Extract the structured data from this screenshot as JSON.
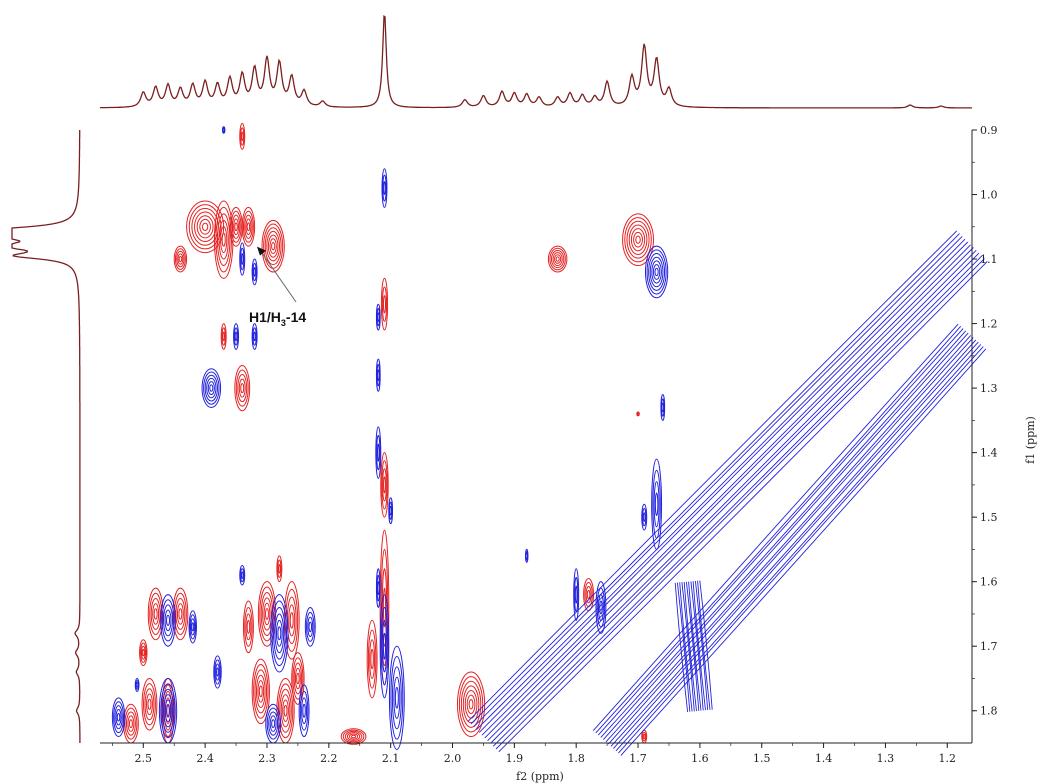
{
  "chart_data": {
    "type": "contour",
    "xlabel": "f2 (ppm)",
    "ylabel": "f1 (ppm)",
    "xlim": [
      2.57,
      1.16
    ],
    "ylim": [
      0.9,
      1.85
    ],
    "x_ticks": [
      "2.5",
      "2.4",
      "2.3",
      "2.2",
      "2.1",
      "2.0",
      "1.9",
      "1.8",
      "1.7",
      "1.6",
      "1.5",
      "1.4",
      "1.3",
      "1.2"
    ],
    "y_ticks": [
      "0.9",
      "1.0",
      "1.1",
      "1.2",
      "1.3",
      "1.4",
      "1.5",
      "1.6",
      "1.7",
      "1.8"
    ],
    "annotation": {
      "text_main": "H1/H",
      "text_sub": "3",
      "text_tail": "-14",
      "x": 2.3,
      "y": 1.09
    },
    "colors": {
      "positive": "#e52222",
      "negative": "#2222dd",
      "projection": "#7a1f1f"
    },
    "projection_peaks_f2": [
      {
        "x": 2.5,
        "h": 0.15
      },
      {
        "x": 2.48,
        "h": 0.2
      },
      {
        "x": 2.46,
        "h": 0.22
      },
      {
        "x": 2.44,
        "h": 0.18
      },
      {
        "x": 2.42,
        "h": 0.22
      },
      {
        "x": 2.4,
        "h": 0.25
      },
      {
        "x": 2.38,
        "h": 0.22
      },
      {
        "x": 2.36,
        "h": 0.28
      },
      {
        "x": 2.34,
        "h": 0.32
      },
      {
        "x": 2.32,
        "h": 0.38
      },
      {
        "x": 2.3,
        "h": 0.48
      },
      {
        "x": 2.28,
        "h": 0.44
      },
      {
        "x": 2.26,
        "h": 0.3
      },
      {
        "x": 2.24,
        "h": 0.16
      },
      {
        "x": 2.21,
        "h": 0.06
      },
      {
        "x": 2.11,
        "h": 1.0
      },
      {
        "x": 1.98,
        "h": 0.08
      },
      {
        "x": 1.95,
        "h": 0.12
      },
      {
        "x": 1.92,
        "h": 0.16
      },
      {
        "x": 1.9,
        "h": 0.14
      },
      {
        "x": 1.88,
        "h": 0.13
      },
      {
        "x": 1.86,
        "h": 0.1
      },
      {
        "x": 1.83,
        "h": 0.1
      },
      {
        "x": 1.81,
        "h": 0.14
      },
      {
        "x": 1.79,
        "h": 0.12
      },
      {
        "x": 1.77,
        "h": 0.1
      },
      {
        "x": 1.75,
        "h": 0.26
      },
      {
        "x": 1.71,
        "h": 0.3
      },
      {
        "x": 1.69,
        "h": 0.62
      },
      {
        "x": 1.67,
        "h": 0.48
      },
      {
        "x": 1.65,
        "h": 0.18
      },
      {
        "x": 1.26,
        "h": 0.03
      },
      {
        "x": 1.21,
        "h": 0.02
      }
    ],
    "projection_peaks_f1": [
      {
        "y": 1.055,
        "h": 1.0
      },
      {
        "y": 1.065,
        "h": 0.9
      },
      {
        "y": 1.08,
        "h": 0.95
      },
      {
        "y": 1.095,
        "h": 0.8
      },
      {
        "y": 1.68,
        "h": 0.07
      },
      {
        "y": 1.71,
        "h": 0.06
      },
      {
        "y": 1.74,
        "h": 0.05
      },
      {
        "y": 1.8,
        "h": 0.05
      }
    ],
    "positive_peaks": [
      {
        "x": 2.4,
        "y": 1.05,
        "rx": 0.03,
        "ry": 0.04
      },
      {
        "x": 2.37,
        "y": 1.07,
        "rx": 0.015,
        "ry": 0.06
      },
      {
        "x": 2.35,
        "y": 1.05,
        "rx": 0.01,
        "ry": 0.03
      },
      {
        "x": 2.33,
        "y": 1.05,
        "rx": 0.01,
        "ry": 0.03
      },
      {
        "x": 2.29,
        "y": 1.08,
        "rx": 0.018,
        "ry": 0.04
      },
      {
        "x": 2.44,
        "y": 1.1,
        "rx": 0.01,
        "ry": 0.02
      },
      {
        "x": 2.34,
        "y": 1.3,
        "rx": 0.012,
        "ry": 0.035
      },
      {
        "x": 2.34,
        "y": 0.91,
        "rx": 0.004,
        "ry": 0.02
      },
      {
        "x": 2.37,
        "y": 1.22,
        "rx": 0.004,
        "ry": 0.02
      },
      {
        "x": 2.11,
        "y": 1.17,
        "rx": 0.005,
        "ry": 0.04
      },
      {
        "x": 2.11,
        "y": 1.45,
        "rx": 0.006,
        "ry": 0.05
      },
      {
        "x": 2.11,
        "y": 1.64,
        "rx": 0.007,
        "ry": 0.12
      },
      {
        "x": 2.13,
        "y": 1.72,
        "rx": 0.008,
        "ry": 0.06
      },
      {
        "x": 1.83,
        "y": 1.1,
        "rx": 0.015,
        "ry": 0.02
      },
      {
        "x": 1.7,
        "y": 1.07,
        "rx": 0.025,
        "ry": 0.04
      },
      {
        "x": 1.7,
        "y": 1.34,
        "rx": 0.002,
        "ry": 0.003
      },
      {
        "x": 1.97,
        "y": 1.79,
        "rx": 0.022,
        "ry": 0.05
      },
      {
        "x": 1.78,
        "y": 1.62,
        "rx": 0.008,
        "ry": 0.025
      },
      {
        "x": 2.48,
        "y": 1.65,
        "rx": 0.012,
        "ry": 0.04
      },
      {
        "x": 2.44,
        "y": 1.65,
        "rx": 0.012,
        "ry": 0.04
      },
      {
        "x": 2.5,
        "y": 1.71,
        "rx": 0.006,
        "ry": 0.02
      },
      {
        "x": 2.49,
        "y": 1.79,
        "rx": 0.012,
        "ry": 0.04
      },
      {
        "x": 2.52,
        "y": 1.82,
        "rx": 0.012,
        "ry": 0.03
      },
      {
        "x": 2.46,
        "y": 1.8,
        "rx": 0.01,
        "ry": 0.05
      },
      {
        "x": 2.33,
        "y": 1.67,
        "rx": 0.008,
        "ry": 0.04
      },
      {
        "x": 2.3,
        "y": 1.65,
        "rx": 0.014,
        "ry": 0.05
      },
      {
        "x": 2.26,
        "y": 1.66,
        "rx": 0.012,
        "ry": 0.06
      },
      {
        "x": 2.28,
        "y": 1.58,
        "rx": 0.004,
        "ry": 0.02
      },
      {
        "x": 2.31,
        "y": 1.77,
        "rx": 0.014,
        "ry": 0.05
      },
      {
        "x": 2.27,
        "y": 1.8,
        "rx": 0.014,
        "ry": 0.05
      },
      {
        "x": 2.25,
        "y": 1.75,
        "rx": 0.01,
        "ry": 0.04
      },
      {
        "x": 2.16,
        "y": 1.84,
        "rx": 0.02,
        "ry": 0.012
      },
      {
        "x": 1.69,
        "y": 1.84,
        "rx": 0.004,
        "ry": 0.01
      }
    ],
    "negative_peaks": [
      {
        "x": 2.11,
        "y": 0.99,
        "rx": 0.004,
        "ry": 0.03
      },
      {
        "x": 2.34,
        "y": 1.1,
        "rx": 0.004,
        "ry": 0.025
      },
      {
        "x": 2.32,
        "y": 1.12,
        "rx": 0.004,
        "ry": 0.02
      },
      {
        "x": 2.37,
        "y": 0.9,
        "rx": 0.002,
        "ry": 0.005
      },
      {
        "x": 2.32,
        "y": 1.22,
        "rx": 0.004,
        "ry": 0.02
      },
      {
        "x": 2.35,
        "y": 1.22,
        "rx": 0.004,
        "ry": 0.02
      },
      {
        "x": 2.39,
        "y": 1.3,
        "rx": 0.015,
        "ry": 0.03
      },
      {
        "x": 2.12,
        "y": 1.19,
        "rx": 0.003,
        "ry": 0.02
      },
      {
        "x": 2.12,
        "y": 1.28,
        "rx": 0.003,
        "ry": 0.025
      },
      {
        "x": 2.12,
        "y": 1.4,
        "rx": 0.004,
        "ry": 0.04
      },
      {
        "x": 2.1,
        "y": 1.49,
        "rx": 0.003,
        "ry": 0.02
      },
      {
        "x": 2.12,
        "y": 1.61,
        "rx": 0.003,
        "ry": 0.03
      },
      {
        "x": 2.11,
        "y": 1.7,
        "rx": 0.007,
        "ry": 0.08
      },
      {
        "x": 2.09,
        "y": 1.78,
        "rx": 0.012,
        "ry": 0.08
      },
      {
        "x": 1.67,
        "y": 1.12,
        "rx": 0.018,
        "ry": 0.04
      },
      {
        "x": 1.66,
        "y": 1.33,
        "rx": 0.003,
        "ry": 0.02
      },
      {
        "x": 1.67,
        "y": 1.48,
        "rx": 0.008,
        "ry": 0.07
      },
      {
        "x": 1.69,
        "y": 1.5,
        "rx": 0.004,
        "ry": 0.02
      },
      {
        "x": 1.8,
        "y": 1.62,
        "rx": 0.004,
        "ry": 0.04
      },
      {
        "x": 1.76,
        "y": 1.64,
        "rx": 0.008,
        "ry": 0.04
      },
      {
        "x": 1.88,
        "y": 1.56,
        "rx": 0.002,
        "ry": 0.01
      },
      {
        "x": 2.46,
        "y": 1.66,
        "rx": 0.012,
        "ry": 0.04
      },
      {
        "x": 2.42,
        "y": 1.67,
        "rx": 0.006,
        "ry": 0.025
      },
      {
        "x": 2.51,
        "y": 1.76,
        "rx": 0.003,
        "ry": 0.01
      },
      {
        "x": 2.54,
        "y": 1.81,
        "rx": 0.01,
        "ry": 0.03
      },
      {
        "x": 2.46,
        "y": 1.8,
        "rx": 0.014,
        "ry": 0.05
      },
      {
        "x": 2.34,
        "y": 1.59,
        "rx": 0.004,
        "ry": 0.015
      },
      {
        "x": 2.28,
        "y": 1.68,
        "rx": 0.014,
        "ry": 0.06
      },
      {
        "x": 2.23,
        "y": 1.67,
        "rx": 0.008,
        "ry": 0.03
      },
      {
        "x": 2.38,
        "y": 1.74,
        "rx": 0.006,
        "ry": 0.025
      },
      {
        "x": 2.24,
        "y": 1.8,
        "rx": 0.008,
        "ry": 0.04
      },
      {
        "x": 2.29,
        "y": 1.82,
        "rx": 0.012,
        "ry": 0.03
      }
    ],
    "diagonal_bands": [
      {
        "x1": 1.95,
        "y1": 1.84,
        "x2": 1.16,
        "y2": 1.08,
        "width": 0.035
      },
      {
        "x1": 1.75,
        "y1": 1.85,
        "x2": 1.16,
        "y2": 1.22,
        "width": 0.03
      },
      {
        "x1": 1.62,
        "y1": 1.6,
        "x2": 1.6,
        "y2": 1.8,
        "width": 0.02
      }
    ]
  }
}
